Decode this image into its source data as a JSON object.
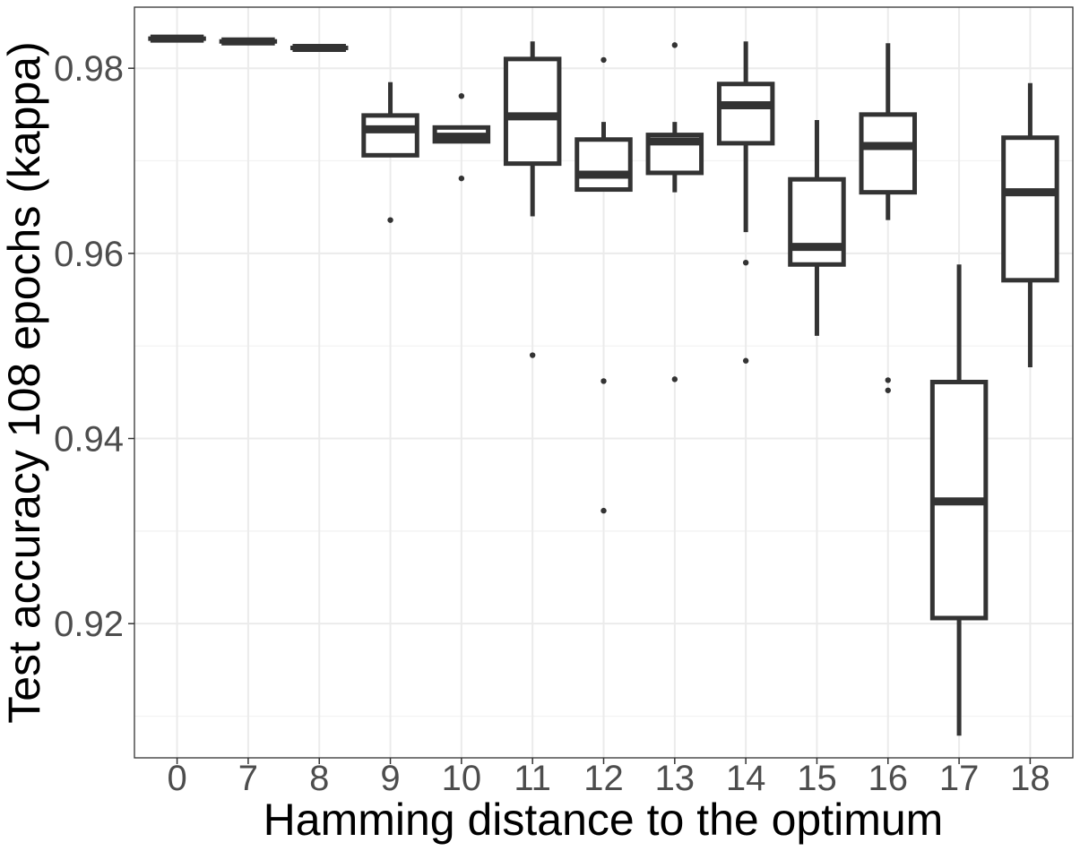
{
  "chart_data": {
    "type": "boxplot",
    "xlabel": "Hamming distance to the optimum",
    "ylabel": "Test accuracy 108 epochs (kappa)",
    "ylim": [
      0.9055,
      0.9866
    ],
    "y_ticks": [
      0.92,
      0.94,
      0.96,
      0.98
    ],
    "y_tick_labels": [
      "0.92",
      "0.94",
      "0.96",
      "0.98"
    ],
    "y_minor_ticks": [
      0.91,
      0.93,
      0.95,
      0.97
    ],
    "grid": true,
    "categories": [
      "0",
      "7",
      "8",
      "9",
      "10",
      "11",
      "12",
      "13",
      "14",
      "15",
      "16",
      "17",
      "18"
    ],
    "boxes": [
      {
        "category": "0",
        "whisker_low": 0.9832,
        "q1": 0.9832,
        "median": 0.9832,
        "q3": 0.9832,
        "whisker_high": 0.9832,
        "outliers": []
      },
      {
        "category": "7",
        "whisker_low": 0.9829,
        "q1": 0.9829,
        "median": 0.9829,
        "q3": 0.9829,
        "whisker_high": 0.9829,
        "outliers": []
      },
      {
        "category": "8",
        "whisker_low": 0.9822,
        "q1": 0.9822,
        "median": 0.9822,
        "q3": 0.9822,
        "whisker_high": 0.9822,
        "outliers": []
      },
      {
        "category": "9",
        "whisker_low": 0.9706,
        "q1": 0.9706,
        "median": 0.9734,
        "q3": 0.9749,
        "whisker_high": 0.9785,
        "outliers": [
          0.9636
        ]
      },
      {
        "category": "10",
        "whisker_low": 0.9721,
        "q1": 0.9721,
        "median": 0.9726,
        "q3": 0.9736,
        "whisker_high": 0.9738,
        "outliers": [
          0.977,
          0.9681
        ]
      },
      {
        "category": "11",
        "whisker_low": 0.964,
        "q1": 0.9697,
        "median": 0.9748,
        "q3": 0.981,
        "whisker_high": 0.9829,
        "outliers": [
          0.949
        ]
      },
      {
        "category": "12",
        "whisker_low": 0.9667,
        "q1": 0.9669,
        "median": 0.9685,
        "q3": 0.9723,
        "whisker_high": 0.9742,
        "outliers": [
          0.9809,
          0.9462,
          0.9322
        ]
      },
      {
        "category": "13",
        "whisker_low": 0.9666,
        "q1": 0.9687,
        "median": 0.9721,
        "q3": 0.9728,
        "whisker_high": 0.9742,
        "outliers": [
          0.9825,
          0.9464
        ]
      },
      {
        "category": "14",
        "whisker_low": 0.9623,
        "q1": 0.9719,
        "median": 0.976,
        "q3": 0.9783,
        "whisker_high": 0.9829,
        "outliers": [
          0.959,
          0.9484
        ]
      },
      {
        "category": "15",
        "whisker_low": 0.9511,
        "q1": 0.9588,
        "median": 0.9607,
        "q3": 0.968,
        "whisker_high": 0.9744,
        "outliers": []
      },
      {
        "category": "16",
        "whisker_low": 0.9636,
        "q1": 0.9666,
        "median": 0.9716,
        "q3": 0.975,
        "whisker_high": 0.9827,
        "outliers": [
          0.9463,
          0.9452
        ]
      },
      {
        "category": "17",
        "whisker_low": 0.9079,
        "q1": 0.9206,
        "median": 0.9332,
        "q3": 0.9461,
        "whisker_high": 0.9588,
        "outliers": []
      },
      {
        "category": "18",
        "whisker_low": 0.9477,
        "q1": 0.9571,
        "median": 0.9666,
        "q3": 0.9725,
        "whisker_high": 0.9784,
        "outliers": []
      }
    ]
  }
}
